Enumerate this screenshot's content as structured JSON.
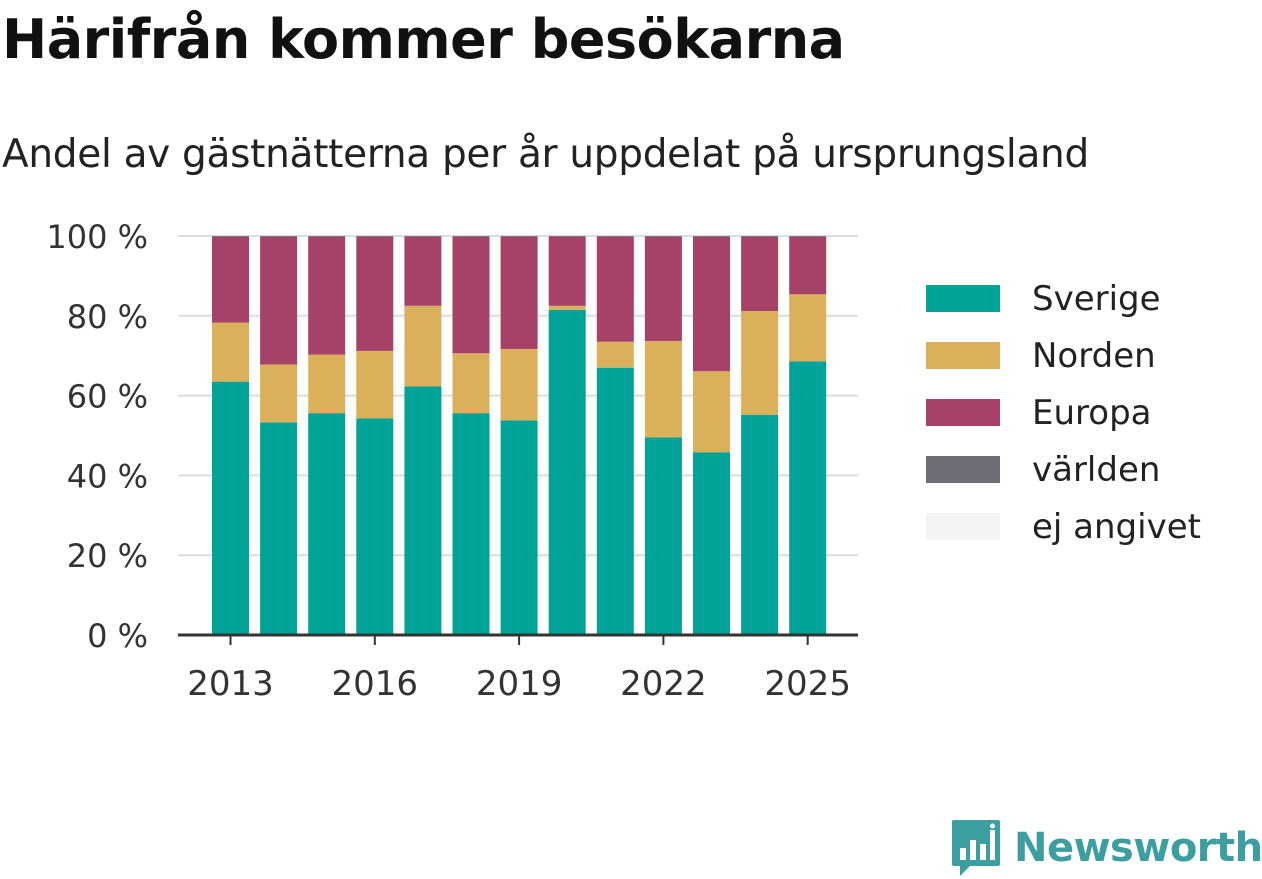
{
  "title": "Härifrån kommer besökarna",
  "subtitle": "Andel av gästnätterna per år uppdelat på ursprungsland",
  "brand": "Newsworthy",
  "chart_data": {
    "type": "bar",
    "stacked": true,
    "categories": [
      "2013",
      "2014",
      "2015",
      "2016",
      "2017",
      "2018",
      "2019",
      "2020",
      "2021",
      "2022",
      "2023",
      "2024",
      "2025"
    ],
    "x_tick_labels": [
      "2013",
      "2016",
      "2019",
      "2022",
      "2025"
    ],
    "y_tick_labels": [
      "0 %",
      "20 %",
      "40 %",
      "60 %",
      "80 %",
      "100 %"
    ],
    "ylim": [
      0,
      100
    ],
    "grid": true,
    "legend_position": "right",
    "series": [
      {
        "name": "Sverige",
        "color": "#00a398",
        "values": [
          63.5,
          53.3,
          55.6,
          54.3,
          62.3,
          55.6,
          53.8,
          81.5,
          67.0,
          49.5,
          45.8,
          55.2,
          68.6
        ]
      },
      {
        "name": "Norden",
        "color": "#dbb05b",
        "values": [
          14.8,
          14.5,
          14.7,
          16.9,
          20.2,
          15.0,
          17.9,
          1.0,
          6.5,
          24.2,
          20.3,
          26.0,
          16.8
        ]
      },
      {
        "name": "Europa",
        "color": "#a64167",
        "values": [
          21.5,
          32.0,
          29.5,
          28.6,
          17.3,
          29.2,
          28.1,
          17.3,
          26.3,
          26.1,
          33.7,
          18.6,
          14.4
        ]
      },
      {
        "name": "världen",
        "color": "#6d6e76",
        "values": [
          0.2,
          0.2,
          0.2,
          0.2,
          0.2,
          0.2,
          0.2,
          0.2,
          0.2,
          0.2,
          0.2,
          0.2,
          0.2
        ]
      },
      {
        "name": "ej angivet",
        "color": "#f4f4f4",
        "values": [
          0,
          0,
          0,
          0,
          0,
          0,
          0,
          0,
          0,
          0,
          0,
          0,
          0
        ]
      }
    ]
  }
}
